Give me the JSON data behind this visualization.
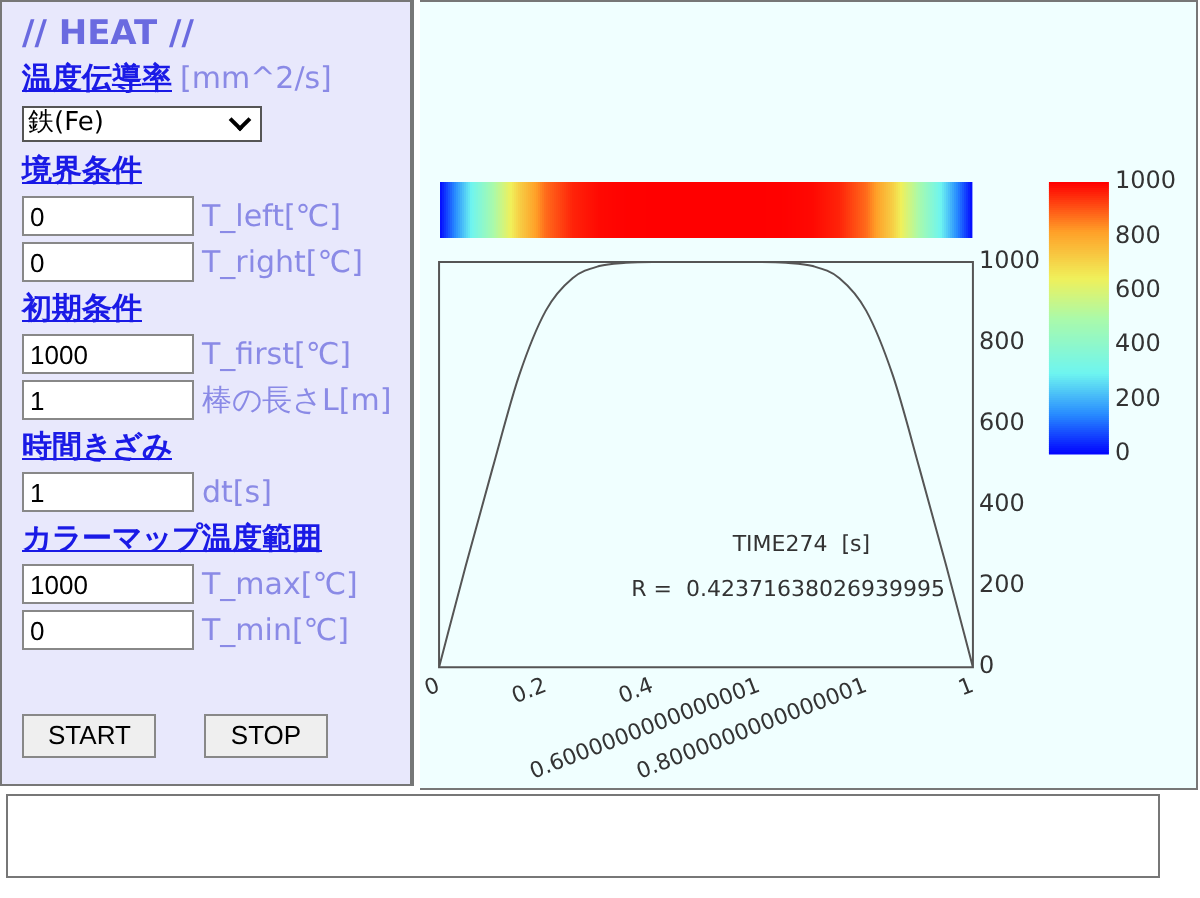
{
  "chart_data": [
    {
      "type": "line",
      "x": [
        0,
        0.05,
        0.1,
        0.15,
        0.2,
        0.25,
        0.3,
        0.35,
        0.4,
        0.5,
        0.6,
        0.65,
        0.7,
        0.75,
        0.8,
        0.85,
        0.9,
        0.95,
        1
      ],
      "values": [
        0,
        250,
        490,
        720,
        880,
        960,
        990,
        998,
        1000,
        1000,
        1000,
        998,
        990,
        960,
        880,
        720,
        490,
        250,
        0
      ],
      "color": "#555555",
      "marker": "none",
      "grid": false,
      "legend": false,
      "xlim": [
        0,
        1
      ],
      "xticks": [
        0,
        0.2,
        0.4,
        {
          "value": 0.6,
          "label": "0.6000000000000001"
        },
        {
          "value": 0.8,
          "label": "0.8000000000000001"
        },
        1
      ],
      "ylim": [
        0,
        1000
      ],
      "yticks": [
        0,
        200,
        400,
        600,
        800,
        1000
      ],
      "clim": [
        0,
        1000
      ],
      "cticks": [
        0,
        200,
        400,
        600,
        800,
        1000
      ],
      "annotations": [
        "TIME274  [s]",
        "R =  0.42371638026939995"
      ]
    },
    {
      "type": "other",
      "title": "// HEAT //",
      "annotations": [
        "温度伝導率",
        "[mm^2/s]",
        "鉄(Fe)",
        "境界条件",
        "0",
        "T_left[℃]",
        "0",
        "T_right[℃]",
        "初期条件",
        "1000",
        "T_first[℃]",
        "1",
        "棒の長さL[m]",
        "時間きざみ",
        "1",
        "dt[s]",
        "カラーマップ温度範囲",
        "1000",
        "T_max[℃]",
        "0",
        "T_min[℃]",
        "START",
        "STOP"
      ]
    }
  ]
}
